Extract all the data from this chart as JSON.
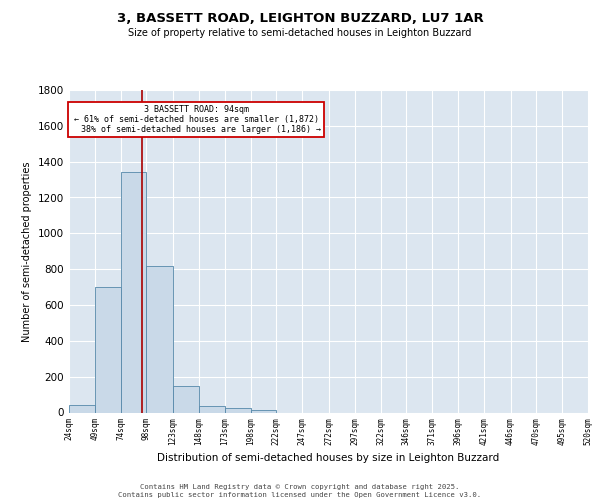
{
  "title": "3, BASSETT ROAD, LEIGHTON BUZZARD, LU7 1AR",
  "subtitle": "Size of property relative to semi-detached houses in Leighton Buzzard",
  "xlabel": "Distribution of semi-detached houses by size in Leighton Buzzard",
  "ylabel": "Number of semi-detached properties",
  "footnote": "Contains HM Land Registry data © Crown copyright and database right 2025.\nContains public sector information licensed under the Open Government Licence v3.0.",
  "property_size": 94,
  "property_label": "3 BASSETT ROAD: 94sqm",
  "pct_smaller": 61,
  "count_smaller": 1872,
  "pct_larger": 38,
  "count_larger": 1186,
  "bin_edges": [
    24,
    49,
    74,
    98,
    123,
    148,
    173,
    198,
    222,
    247,
    272,
    297,
    322,
    346,
    371,
    396,
    421,
    446,
    470,
    495,
    520
  ],
  "bin_labels": [
    "24sqm",
    "49sqm",
    "74sqm",
    "98sqm",
    "123sqm",
    "148sqm",
    "173sqm",
    "198sqm",
    "222sqm",
    "247sqm",
    "272sqm",
    "297sqm",
    "322sqm",
    "346sqm",
    "371sqm",
    "396sqm",
    "421sqm",
    "446sqm",
    "470sqm",
    "495sqm",
    "520sqm"
  ],
  "bar_heights": [
    40,
    700,
    1340,
    820,
    150,
    35,
    25,
    15,
    0,
    0,
    0,
    0,
    0,
    0,
    0,
    0,
    0,
    0,
    0,
    0
  ],
  "bar_color": "#c9d9e8",
  "bar_edge_color": "#5588aa",
  "red_line_color": "#aa0000",
  "annotation_box_color": "#cc0000",
  "bg_color": "#dce6f0",
  "grid_color": "#c0ccd8",
  "ylim": [
    0,
    1800
  ],
  "yticks": [
    0,
    200,
    400,
    600,
    800,
    1000,
    1200,
    1400,
    1600,
    1800
  ]
}
